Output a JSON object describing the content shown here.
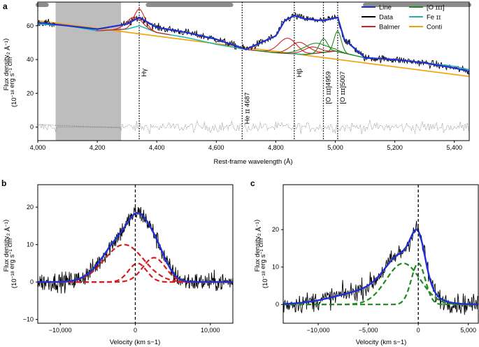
{
  "colors": {
    "line": "#1f2fd6",
    "data": "#000000",
    "balmer": "#d42020",
    "oiii": "#1e8a1e",
    "feii": "#1fb3b3",
    "conti": "#f5a000",
    "masked": "#bdbdbd",
    "bar": "#8c8c8c",
    "residual": "#888888"
  },
  "chart_data": [
    {
      "type": "line",
      "panel_label": "a",
      "xlabel": "Rest-frame wavelength (Å)",
      "ylabel": [
        "Flux density",
        "(10",
        "−18",
        " erg s",
        "−1",
        " cm",
        "−2",
        " Å",
        "−1",
        ")"
      ],
      "xlim": [
        4000,
        5450
      ],
      "ylim": [
        -8,
        74
      ],
      "xticks": [
        4000,
        4200,
        4400,
        4600,
        4800,
        5000,
        5200,
        5400
      ],
      "xtick_labels": [
        "4,000",
        "4,200",
        "4,400",
        "4,600",
        "4,800",
        "5,000",
        "5,200",
        "5,400"
      ],
      "yticks": [
        0,
        20,
        40,
        60
      ],
      "ytick_labels": [
        "0",
        "20",
        "40",
        "60"
      ],
      "masked_region": [
        4060,
        4280
      ],
      "bars": [
        [
          4000,
          4030
        ],
        [
          4370,
          4650
        ],
        [
          5100,
          5450
        ]
      ],
      "legend": [
        {
          "label": "Line",
          "key": "line"
        },
        {
          "label": "Data",
          "key": "data"
        },
        {
          "label": "Balmer",
          "key": "balmer"
        },
        {
          "label": "[O ɪɪɪ]",
          "key": "oiii"
        },
        {
          "label": "Fe ɪɪ",
          "key": "feii"
        },
        {
          "label": "Conti",
          "key": "conti"
        }
      ],
      "line_markers": [
        {
          "x": 4341,
          "label": "Hγ"
        },
        {
          "x": 4687,
          "label": "He ɪɪ 4687"
        },
        {
          "x": 4862,
          "label": "Hβ"
        },
        {
          "x": 4960,
          "label": "[O ɪɪɪ]4959"
        },
        {
          "x": 5008,
          "label": "[O ɪɪɪ]5007"
        }
      ],
      "continuum": {
        "x": [
          4000,
          5450
        ],
        "y": [
          63,
          30
        ]
      },
      "feii_anchor": {
        "x": [
          4000,
          4100,
          4200,
          4300,
          4341,
          4400,
          4500,
          4600,
          4700,
          4800,
          4900,
          5000,
          5100,
          5200,
          5300,
          5400,
          5450
        ],
        "y": [
          61,
          60,
          57,
          58,
          60,
          56,
          53,
          49,
          46,
          44,
          43,
          45,
          41,
          40,
          38,
          36,
          34
        ]
      },
      "model_anchor": {
        "x": [
          4000,
          4100,
          4200,
          4300,
          4341,
          4400,
          4500,
          4600,
          4700,
          4800,
          4830,
          4862,
          4900,
          4960,
          5008,
          5030,
          5100,
          5200,
          5300,
          5400,
          5450
        ],
        "y": [
          62,
          60,
          58,
          61,
          65,
          59,
          56,
          52,
          46,
          54,
          63,
          66,
          64,
          63,
          65,
          52,
          41,
          40,
          38,
          35,
          33
        ]
      }
    },
    {
      "type": "line",
      "panel_label": "b",
      "xlabel": "Velocity (km s−1)",
      "ylabel": [
        "Flux density",
        "(10",
        "−18",
        " erg s",
        "−1",
        " cm",
        "−2",
        " Å",
        "−1",
        ")"
      ],
      "xlim": [
        -13000,
        13000
      ],
      "ylim": [
        -11,
        26
      ],
      "xticks": [
        -10000,
        0,
        10000
      ],
      "xtick_labels": [
        "−10,000",
        "0",
        "10,000"
      ],
      "yticks": [
        -10,
        0,
        10,
        20
      ],
      "ytick_labels": [
        "−10",
        "0",
        "10",
        "20"
      ],
      "model_peak": 18.5,
      "components": [
        {
          "center": -1500,
          "sigma": 2600,
          "amp": 10
        },
        {
          "center": 300,
          "sigma": 1200,
          "amp": 5
        },
        {
          "center": 2500,
          "sigma": 1500,
          "amp": 6.5
        }
      ]
    },
    {
      "type": "line",
      "panel_label": "c",
      "xlabel": "Velocity (km s−1)",
      "ylabel": [
        "Flux density",
        "(10",
        "−18",
        " erg s",
        "−1",
        " cm",
        "−2",
        " Å",
        "−1",
        ")"
      ],
      "xlim": [
        -13500,
        6000
      ],
      "ylim": [
        -5,
        32
      ],
      "xticks": [
        -10000,
        -5000,
        0,
        5000
      ],
      "xtick_labels": [
        "−10,000",
        "−5,000",
        "0",
        "5,000"
      ],
      "yticks": [
        0,
        10,
        20
      ],
      "ytick_labels": [
        "0",
        "10",
        "20"
      ],
      "model_peak": 20,
      "components": [
        {
          "center": 0,
          "sigma": 700,
          "amp": 11
        },
        {
          "center": -1500,
          "sigma": 1700,
          "amp": 11
        }
      ]
    }
  ]
}
